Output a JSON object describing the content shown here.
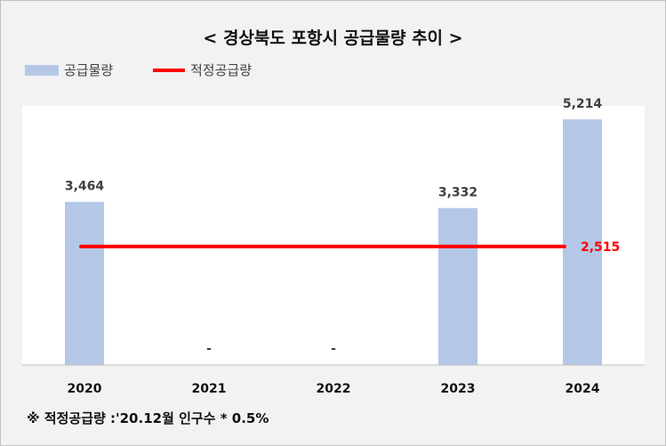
{
  "chart_data": {
    "type": "bar",
    "title": "< 경상북도 포항시 공급물량 추이 >",
    "categories": [
      "2020",
      "2021",
      "2022",
      "2023",
      "2024"
    ],
    "series": [
      {
        "name": "공급물량",
        "type": "bar",
        "values": [
          3464,
          0,
          0,
          3332,
          5214
        ],
        "labels": [
          "3,464",
          "-",
          "-",
          "3,332",
          "5,214"
        ],
        "color": "#b4c7e7"
      },
      {
        "name": "적정공급량",
        "type": "line",
        "values": [
          2515,
          2515,
          2515,
          2515,
          2515
        ],
        "end_label": "2,515",
        "color": "#ff0000"
      }
    ],
    "ylim": [
      0,
      5500
    ],
    "grid": false,
    "legend": "top-left",
    "footnote": "※ 적정공급량 :'20.12월 인구수 * 0.5%"
  }
}
